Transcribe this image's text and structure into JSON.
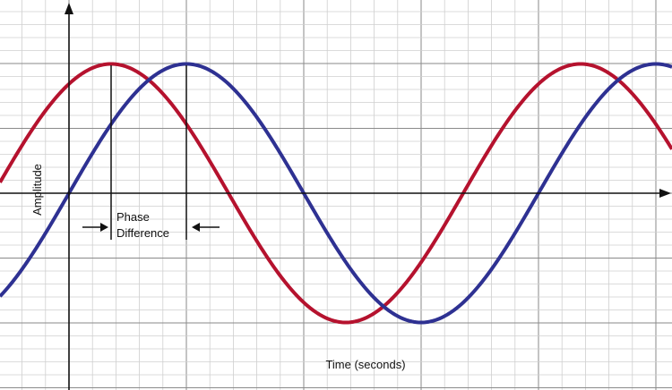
{
  "axes": {
    "y_label": "Amplitude",
    "x_label": "Time (seconds)"
  },
  "annotation": {
    "line1": "Phase",
    "line2": "Difference"
  }
}
